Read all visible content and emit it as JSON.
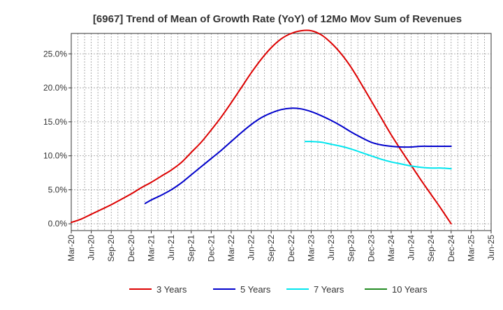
{
  "chart_data": {
    "type": "line",
    "title": "[6967]  Trend of Mean of Growth Rate (YoY) of 12Mo Mov Sum of Revenues",
    "xlabel": "",
    "ylabel": "",
    "x_tick_labels": [
      "Mar-20",
      "Jun-20",
      "Sep-20",
      "Dec-20",
      "Mar-21",
      "Jun-21",
      "Sep-21",
      "Dec-21",
      "Mar-22",
      "Jun-22",
      "Sep-22",
      "Dec-22",
      "Mar-23",
      "Jun-23",
      "Sep-23",
      "Dec-23",
      "Mar-24",
      "Jun-24",
      "Sep-24",
      "Dec-24",
      "Mar-25",
      "Jun-25"
    ],
    "y_tick_labels": [
      "0.0%",
      "5.0%",
      "10.0%",
      "15.0%",
      "20.0%",
      "25.0%"
    ],
    "y_ticks": [
      0,
      5,
      10,
      15,
      20,
      25
    ],
    "ylim": [
      -1,
      28
    ],
    "x_range": [
      0,
      21
    ],
    "grid": true,
    "legend_position": "bottom",
    "series": [
      {
        "name": "3 Years",
        "color": "#dd0000",
        "points": [
          [
            0,
            0.2
          ],
          [
            0.5,
            0.7
          ],
          [
            1,
            1.4
          ],
          [
            1.5,
            2.1
          ],
          [
            2,
            2.8
          ],
          [
            2.5,
            3.6
          ],
          [
            3,
            4.4
          ],
          [
            3.5,
            5.3
          ],
          [
            4,
            6.1
          ],
          [
            4.5,
            7.0
          ],
          [
            5,
            7.9
          ],
          [
            5.5,
            9.0
          ],
          [
            6,
            10.5
          ],
          [
            6.5,
            12.0
          ],
          [
            7,
            13.8
          ],
          [
            7.5,
            15.7
          ],
          [
            8,
            17.8
          ],
          [
            8.5,
            20.0
          ],
          [
            9,
            22.2
          ],
          [
            9.5,
            24.2
          ],
          [
            10,
            25.9
          ],
          [
            10.5,
            27.2
          ],
          [
            11,
            28.0
          ],
          [
            11.5,
            28.4
          ],
          [
            12,
            28.4
          ],
          [
            12.5,
            27.8
          ],
          [
            13,
            26.6
          ],
          [
            13.5,
            25.0
          ],
          [
            14,
            23.0
          ],
          [
            14.5,
            20.6
          ],
          [
            15,
            18.1
          ],
          [
            15.5,
            15.6
          ],
          [
            16,
            13.1
          ],
          [
            16.5,
            10.8
          ],
          [
            17,
            8.6
          ],
          [
            17.5,
            6.4
          ],
          [
            18,
            4.3
          ],
          [
            18.5,
            2.2
          ],
          [
            19,
            0.0
          ]
        ]
      },
      {
        "name": "5 Years",
        "color": "#0000cc",
        "points": [
          [
            3.7,
            3.0
          ],
          [
            4,
            3.5
          ],
          [
            4.5,
            4.2
          ],
          [
            5,
            5.0
          ],
          [
            5.5,
            6.0
          ],
          [
            6,
            7.2
          ],
          [
            6.5,
            8.4
          ],
          [
            7,
            9.6
          ],
          [
            7.5,
            10.8
          ],
          [
            8,
            12.1
          ],
          [
            8.5,
            13.4
          ],
          [
            9,
            14.6
          ],
          [
            9.5,
            15.6
          ],
          [
            10,
            16.3
          ],
          [
            10.5,
            16.8
          ],
          [
            11,
            17.0
          ],
          [
            11.5,
            16.9
          ],
          [
            12,
            16.5
          ],
          [
            12.5,
            15.9
          ],
          [
            13,
            15.2
          ],
          [
            13.5,
            14.4
          ],
          [
            14,
            13.5
          ],
          [
            14.5,
            12.7
          ],
          [
            15,
            12.0
          ],
          [
            15.5,
            11.6
          ],
          [
            16,
            11.4
          ],
          [
            16.5,
            11.3
          ],
          [
            17,
            11.3
          ],
          [
            17.5,
            11.4
          ],
          [
            18,
            11.4
          ],
          [
            18.5,
            11.4
          ],
          [
            19,
            11.4
          ]
        ]
      },
      {
        "name": "7 Years",
        "color": "#00e5ee",
        "points": [
          [
            11.7,
            12.1
          ],
          [
            12,
            12.1
          ],
          [
            12.5,
            12.0
          ],
          [
            13,
            11.7
          ],
          [
            13.5,
            11.4
          ],
          [
            14,
            11.0
          ],
          [
            14.5,
            10.5
          ],
          [
            15,
            10.0
          ],
          [
            15.5,
            9.5
          ],
          [
            16,
            9.1
          ],
          [
            16.5,
            8.8
          ],
          [
            17,
            8.5
          ],
          [
            17.5,
            8.3
          ],
          [
            18,
            8.2
          ],
          [
            18.5,
            8.2
          ],
          [
            19,
            8.1
          ]
        ]
      },
      {
        "name": "10 Years",
        "color": "#228b22",
        "points": []
      }
    ]
  }
}
